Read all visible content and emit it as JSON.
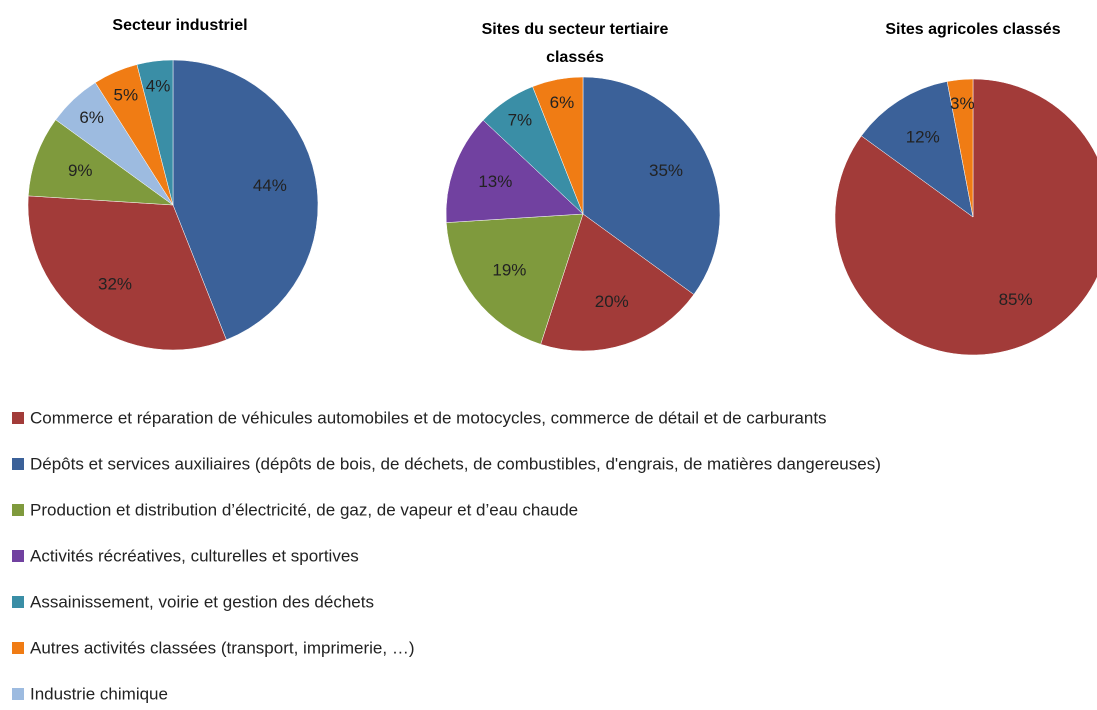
{
  "chart_data": [
    {
      "type": "pie",
      "title": "Secteur industriel",
      "categories": [
        "Dépôts et services auxiliaires (dépôts de bois, de déchets, de combustibles, d'engrais, de matières dangereuses)",
        "Commerce et réparation de véhicules automobiles et de motocycles, commerce de détail et de carburants",
        "Production et distribution d’électricité, de gaz, de vapeur et d’eau chaude",
        "Industrie chimique",
        "Autres activités classées (transport, imprimerie, …)",
        "Assainissement, voirie et gestion des déchets"
      ],
      "values": [
        44,
        32,
        9,
        6,
        5,
        4
      ],
      "value_labels": [
        "44%",
        "32%",
        "9%",
        "6%",
        "5%",
        "4%"
      ]
    },
    {
      "type": "pie",
      "title": "Sites du secteur tertiaire classés",
      "categories": [
        "Dépôts et services auxiliaires (dépôts de bois, de déchets, de combustibles, d'engrais, de matières dangereuses)",
        "Commerce et réparation de véhicules automobiles et de motocycles, commerce de détail et de carburants",
        "Production et distribution d’électricité, de gaz, de vapeur et d’eau chaude",
        "Activités récréatives, culturelles et sportives",
        "Assainissement, voirie et gestion des déchets",
        "Autres activités classées (transport, imprimerie, …)"
      ],
      "values": [
        35,
        20,
        19,
        13,
        7,
        6
      ],
      "value_labels": [
        "35%",
        "20%",
        "19%",
        "13%",
        "7%",
        "6%"
      ]
    },
    {
      "type": "pie",
      "title": "Sites agricoles classés",
      "categories": [
        "Commerce et réparation de véhicules automobiles et de motocycles, commerce de détail et de carburants",
        "Dépôts et services auxiliaires (dépôts de bois, de déchets, de combustibles, d'engrais, de matières dangereuses)",
        "Autres activités classées (transport, imprimerie, …)"
      ],
      "values": [
        85,
        12,
        3
      ],
      "value_labels": [
        "85%",
        "12%",
        "3%"
      ]
    }
  ],
  "legend": [
    {
      "name": "Commerce et réparation de véhicules automobiles et de motocycles, commerce de détail et de carburants",
      "color": "#a23b39"
    },
    {
      "name": "Dépôts et services auxiliaires (dépôts de bois, de déchets, de combustibles, d'engrais, de matières dangereuses)",
      "color": "#3b6199"
    },
    {
      "name": "Production et distribution d’électricité, de gaz, de vapeur et d’eau chaude",
      "color": "#7f9a3d"
    },
    {
      "name": "Activités récréatives, culturelles et sportives",
      "color": "#7141a0"
    },
    {
      "name": "Assainissement, voirie et gestion des déchets",
      "color": "#3a8ea6"
    },
    {
      "name": "Autres activités classées (transport, imprimerie, …)",
      "color": "#f07c14"
    },
    {
      "name": "Industrie chimique",
      "color": "#9dbbe0"
    }
  ]
}
